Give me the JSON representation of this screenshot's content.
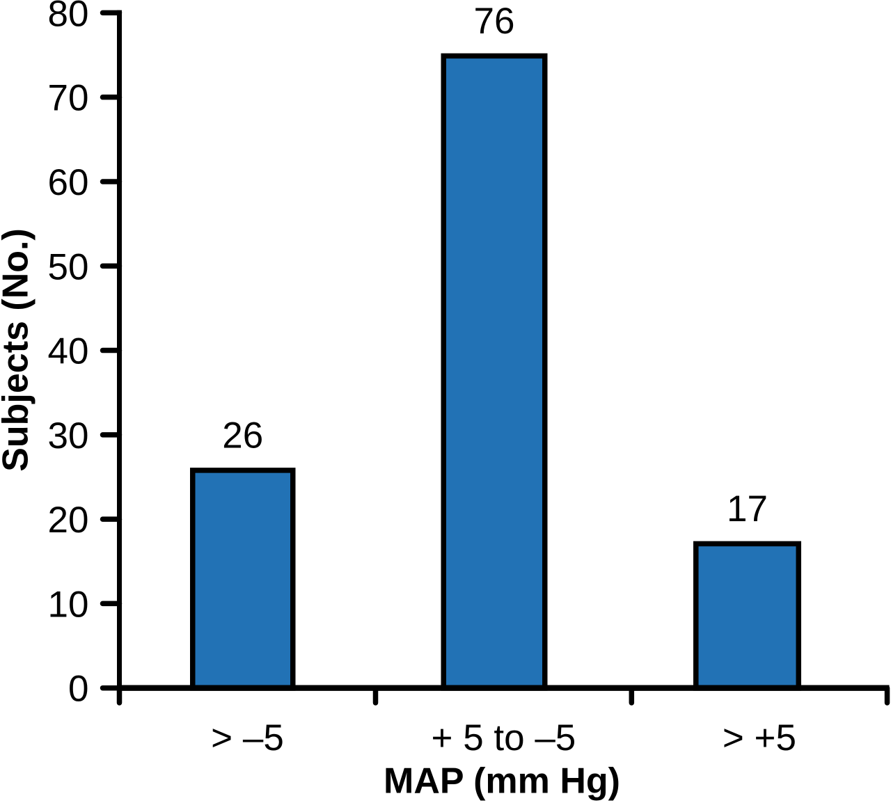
{
  "chart_data": {
    "type": "bar",
    "title": "",
    "categories": [
      "> –5",
      "+ 5 to –5",
      "> +5"
    ],
    "values": [
      26,
      76,
      17
    ],
    "bar_value_labels": [
      "26",
      "76",
      "17"
    ],
    "drawn_values": [
      26.1,
      75.2,
      17.4
    ],
    "xlabel": "MAP (mm Hg)",
    "ylabel": "Subjects (No.)",
    "ylim": [
      0,
      80
    ],
    "yticks": [
      0,
      10,
      20,
      30,
      40,
      50,
      60,
      70,
      80
    ],
    "ytick_labels": [
      "0",
      "10",
      "20",
      "30",
      "40",
      "50",
      "60",
      "70",
      "80"
    ],
    "grid": false,
    "legend": false,
    "colors": {
      "bar_fill": "#2272B5",
      "bar_edge": "#000000",
      "axis": "#000000",
      "text": "#000000",
      "background": "#FFFFFF"
    }
  }
}
